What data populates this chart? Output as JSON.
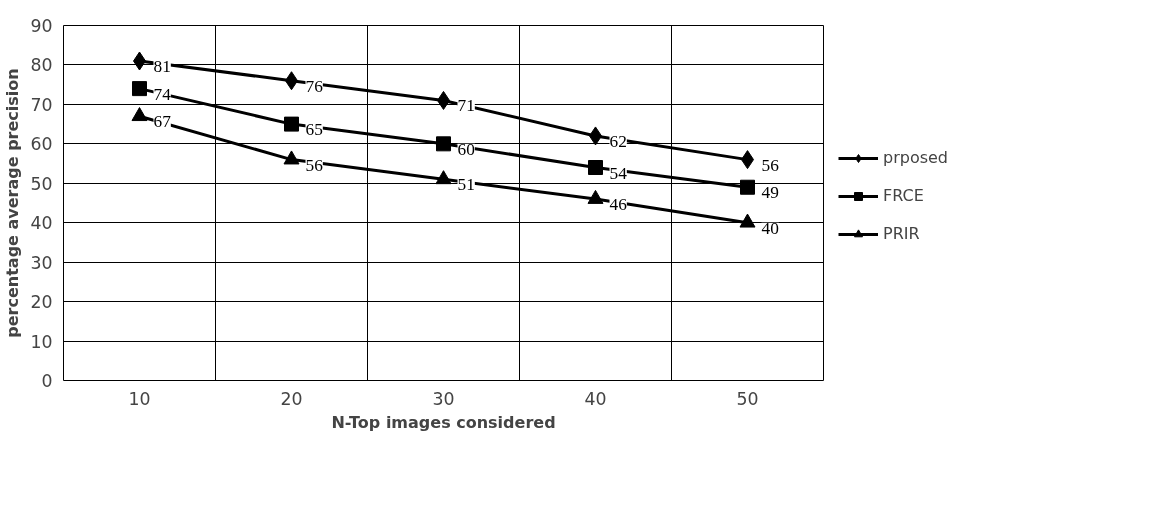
{
  "chart_data": {
    "type": "line",
    "xlabel": "N-Top images considered",
    "ylabel": "percentage average precision",
    "categories": [
      "10",
      "20",
      "30",
      "40",
      "50"
    ],
    "series": [
      {
        "name": "prposed",
        "color": "#000000",
        "marker": "diamond",
        "values": [
          81,
          76,
          71,
          62,
          56
        ]
      },
      {
        "name": "FRCE",
        "color": "#000000",
        "marker": "square",
        "values": [
          74,
          65,
          60,
          54,
          49
        ]
      },
      {
        "name": "PRIR",
        "color": "#000000",
        "marker": "triangle",
        "values": [
          67,
          56,
          51,
          46,
          40
        ]
      }
    ],
    "ylim": [
      0,
      90
    ],
    "yticks": [
      0,
      10,
      20,
      30,
      40,
      50,
      60,
      70,
      80,
      90
    ],
    "grid": true,
    "legend": "right",
    "data_labels": true,
    "line_style": "solid"
  }
}
